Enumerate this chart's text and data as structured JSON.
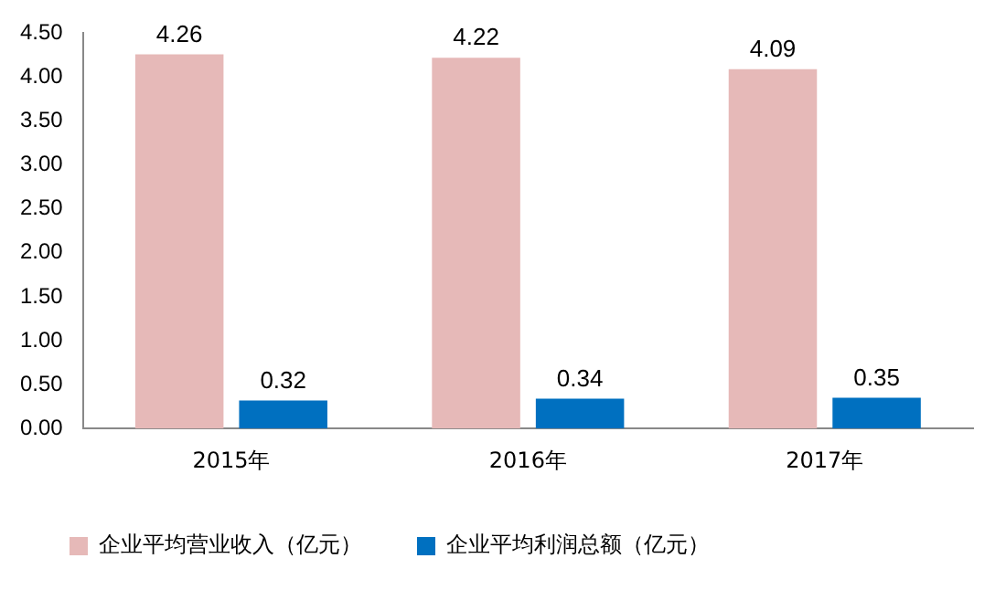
{
  "chart_data": {
    "type": "bar",
    "categories": [
      "2015年",
      "2016年",
      "2017年"
    ],
    "series": [
      {
        "name": "企业平均营业收入（亿元）",
        "color": "#e6b9b8",
        "values": [
          4.26,
          4.22,
          4.09
        ]
      },
      {
        "name": "企业平均利润总额（亿元）",
        "color": "#0070c0",
        "values": [
          0.32,
          0.34,
          0.35
        ]
      }
    ],
    "ylim": [
      0,
      4.5
    ],
    "yticks": [
      {
        "value": 0,
        "label": "0.00"
      },
      {
        "value": 0.5,
        "label": "0.50"
      },
      {
        "value": 1,
        "label": "1.00"
      },
      {
        "value": 1.5,
        "label": "1.50"
      },
      {
        "value": 2,
        "label": "2.00"
      },
      {
        "value": 2.5,
        "label": "2.50"
      },
      {
        "value": 3,
        "label": "3.00"
      },
      {
        "value": 3.5,
        "label": "3.50"
      },
      {
        "value": 4,
        "label": "4.00"
      },
      {
        "value": 4.5,
        "label": "4.50"
      }
    ],
    "data_labels": true,
    "legend": "bottom",
    "grid": false
  }
}
